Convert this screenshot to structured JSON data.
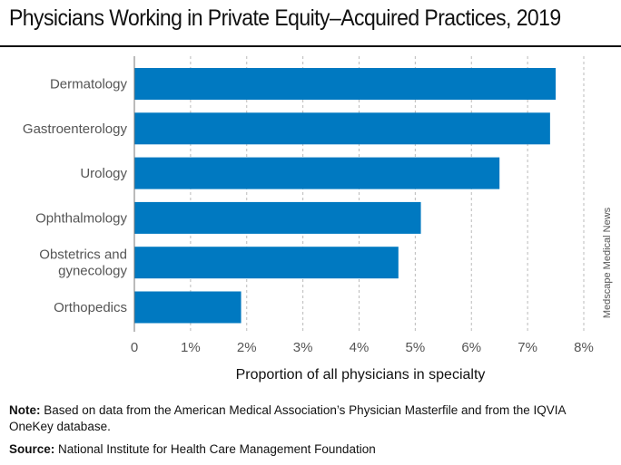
{
  "title": "Physicians Working in Private Equity–Acquired Practices, 2019",
  "side_credit": "Medscape Medical News",
  "note_label": "Note:",
  "note_text": " Based on data from the American Medical Association’s Physician Masterfile and from the IQVIA OneKey database.",
  "source_label": "Source:",
  "source_text": " National Institute for Health Care Management Foundation",
  "colors": {
    "bar": "#0079c1",
    "grid": "#bbbbbb",
    "axis": "#777777"
  },
  "chart_data": {
    "type": "bar",
    "orientation": "horizontal",
    "categories": [
      [
        "Dermatology"
      ],
      [
        "Gastroenterology"
      ],
      [
        "Urology"
      ],
      [
        "Ophthalmology"
      ],
      [
        "Obstetrics and",
        "gynecology"
      ],
      [
        "Orthopedics"
      ]
    ],
    "values": [
      7.5,
      7.4,
      6.5,
      5.1,
      4.7,
      1.9
    ],
    "xlabel": "Proportion of all physicians in specialty",
    "xlim": [
      0,
      8
    ],
    "xticks": [
      0,
      1,
      2,
      3,
      4,
      5,
      6,
      7,
      8
    ],
    "xtick_labels": [
      "0",
      "1%",
      "2%",
      "3%",
      "4%",
      "5%",
      "6%",
      "7%",
      "8%"
    ],
    "grid": "vertical dashed"
  }
}
